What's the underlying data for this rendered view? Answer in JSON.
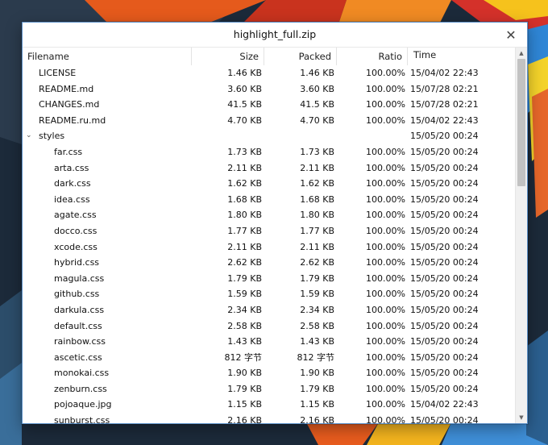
{
  "window": {
    "title": "highlight_full.zip",
    "close_glyph": "✕"
  },
  "columns": {
    "filename": "Filename",
    "size": "Size",
    "packed": "Packed",
    "ratio": "Ratio",
    "time": "Time"
  },
  "rows": [
    {
      "name": "LICENSE",
      "size": "1.46 KB",
      "packed": "1.46 KB",
      "ratio": "100.00%",
      "time": "15/04/02 22:43"
    },
    {
      "name": "README.md",
      "size": "3.60 KB",
      "packed": "3.60 KB",
      "ratio": "100.00%",
      "time": "15/07/28 02:21"
    },
    {
      "name": "CHANGES.md",
      "size": "41.5 KB",
      "packed": "41.5 KB",
      "ratio": "100.00%",
      "time": "15/07/28 02:21"
    },
    {
      "name": "README.ru.md",
      "size": "4.70 KB",
      "packed": "4.70 KB",
      "ratio": "100.00%",
      "time": "15/04/02 22:43"
    },
    {
      "name": "styles",
      "size": "",
      "packed": "",
      "ratio": "",
      "time": "15/05/20 00:24",
      "folder": true,
      "caret": "⌄"
    },
    {
      "name": "far.css",
      "size": "1.73 KB",
      "packed": "1.73 KB",
      "ratio": "100.00%",
      "time": "15/05/20 00:24",
      "child": true
    },
    {
      "name": "arta.css",
      "size": "2.11 KB",
      "packed": "2.11 KB",
      "ratio": "100.00%",
      "time": "15/05/20 00:24",
      "child": true
    },
    {
      "name": "dark.css",
      "size": "1.62 KB",
      "packed": "1.62 KB",
      "ratio": "100.00%",
      "time": "15/05/20 00:24",
      "child": true
    },
    {
      "name": "idea.css",
      "size": "1.68 KB",
      "packed": "1.68 KB",
      "ratio": "100.00%",
      "time": "15/05/20 00:24",
      "child": true
    },
    {
      "name": "agate.css",
      "size": "1.80 KB",
      "packed": "1.80 KB",
      "ratio": "100.00%",
      "time": "15/05/20 00:24",
      "child": true
    },
    {
      "name": "docco.css",
      "size": "1.77 KB",
      "packed": "1.77 KB",
      "ratio": "100.00%",
      "time": "15/05/20 00:24",
      "child": true
    },
    {
      "name": "xcode.css",
      "size": "2.11 KB",
      "packed": "2.11 KB",
      "ratio": "100.00%",
      "time": "15/05/20 00:24",
      "child": true
    },
    {
      "name": "hybrid.css",
      "size": "2.62 KB",
      "packed": "2.62 KB",
      "ratio": "100.00%",
      "time": "15/05/20 00:24",
      "child": true
    },
    {
      "name": "magula.css",
      "size": "1.79 KB",
      "packed": "1.79 KB",
      "ratio": "100.00%",
      "time": "15/05/20 00:24",
      "child": true
    },
    {
      "name": "github.css",
      "size": "1.59 KB",
      "packed": "1.59 KB",
      "ratio": "100.00%",
      "time": "15/05/20 00:24",
      "child": true
    },
    {
      "name": "darkula.css",
      "size": "2.34 KB",
      "packed": "2.34 KB",
      "ratio": "100.00%",
      "time": "15/05/20 00:24",
      "child": true
    },
    {
      "name": "default.css",
      "size": "2.58 KB",
      "packed": "2.58 KB",
      "ratio": "100.00%",
      "time": "15/05/20 00:24",
      "child": true
    },
    {
      "name": "rainbow.css",
      "size": "1.43 KB",
      "packed": "1.43 KB",
      "ratio": "100.00%",
      "time": "15/05/20 00:24",
      "child": true
    },
    {
      "name": "ascetic.css",
      "size": "812 字节",
      "packed": "812 字节",
      "ratio": "100.00%",
      "time": "15/05/20 00:24",
      "child": true
    },
    {
      "name": "monokai.css",
      "size": "1.90 KB",
      "packed": "1.90 KB",
      "ratio": "100.00%",
      "time": "15/05/20 00:24",
      "child": true
    },
    {
      "name": "zenburn.css",
      "size": "1.79 KB",
      "packed": "1.79 KB",
      "ratio": "100.00%",
      "time": "15/05/20 00:24",
      "child": true
    },
    {
      "name": "pojoaque.jpg",
      "size": "1.15 KB",
      "packed": "1.15 KB",
      "ratio": "100.00%",
      "time": "15/04/02 22:43",
      "child": true
    },
    {
      "name": "sunburst.css",
      "size": "2.16 KB",
      "packed": "2.16 KB",
      "ratio": "100.00%",
      "time": "15/05/20 00:24",
      "child": true
    }
  ],
  "scrollbar": {
    "up_glyph": "▲",
    "down_glyph": "▼",
    "position_fraction": 0.0,
    "visible_fraction": 0.36
  }
}
